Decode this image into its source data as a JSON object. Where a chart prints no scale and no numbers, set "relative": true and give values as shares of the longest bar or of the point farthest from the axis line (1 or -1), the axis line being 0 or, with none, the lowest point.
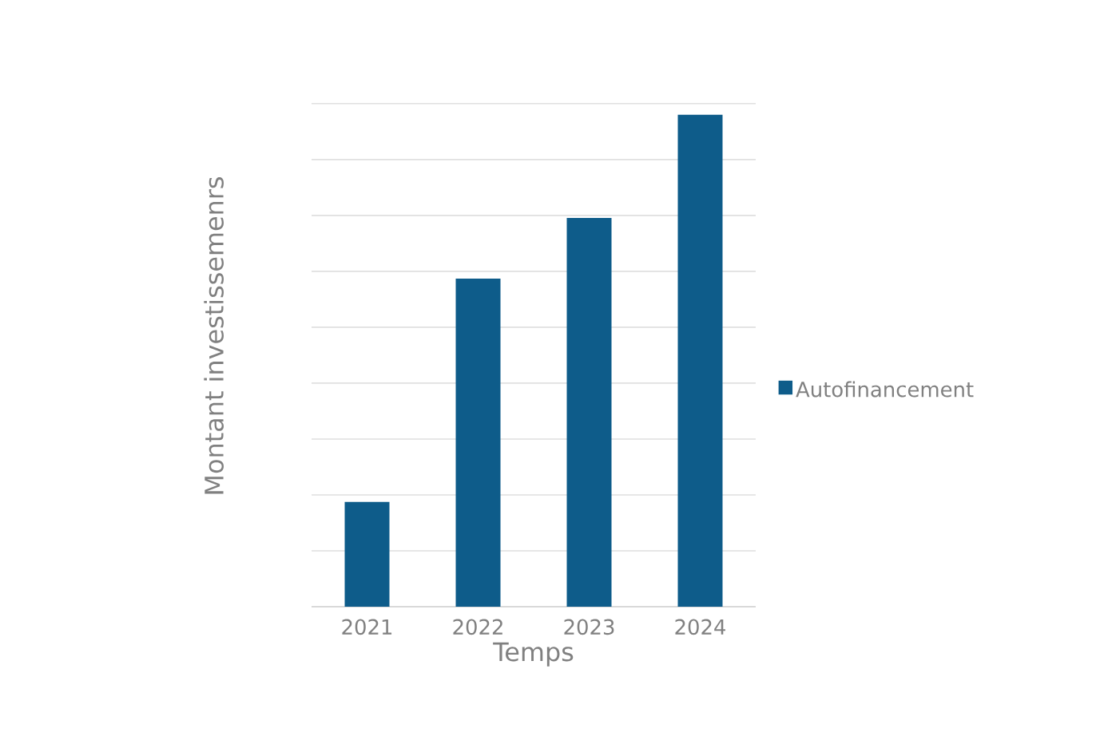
{
  "chart_data": {
    "type": "bar",
    "xlabel": "Temps",
    "ylabel": "Montant investissemenrs",
    "categories": [
      "2021",
      "2022",
      "2023",
      "2024"
    ],
    "series": [
      {
        "name": "Autofinancement",
        "color": "#0e5c8a",
        "values": [
          0.213,
          0.667,
          0.79,
          1.0
        ]
      }
    ],
    "relative": true,
    "grid": "y",
    "legend": "right"
  }
}
